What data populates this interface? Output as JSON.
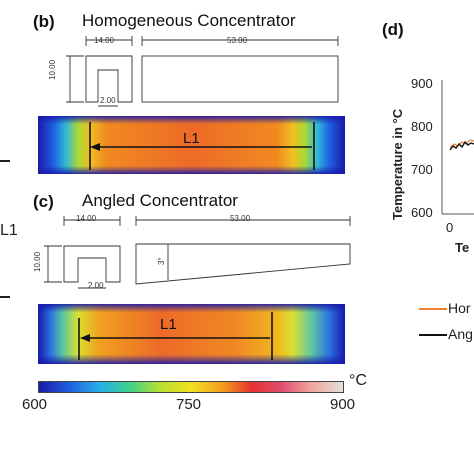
{
  "panel_b": {
    "label": "(b)",
    "title": "Homogeneous Concentrator",
    "dims": {
      "w1": "14.00",
      "w2": "53.00",
      "h": "10.00",
      "g": "2.00"
    },
    "sim_label": "L1"
  },
  "panel_c": {
    "label": "(c)",
    "title": "Angled Concentrator",
    "dims": {
      "w1": "14.00",
      "w2": "53.00",
      "h": "10.00",
      "g": "2.00",
      "angle": "3°"
    },
    "sim_label": "L1"
  },
  "colorbar": {
    "unit": "°C",
    "ticks": [
      "600",
      "750",
      "900"
    ],
    "colors": [
      "#1a1aa8",
      "#1f5fe0",
      "#28b0e8",
      "#3fd08a",
      "#b8e030",
      "#f0e020",
      "#f4a020",
      "#e83030",
      "#e05070",
      "#f0a8a0",
      "#e8e0da"
    ]
  },
  "left_edge": {
    "label": "L1"
  },
  "panel_d": {
    "label": "(d)",
    "ylabel": "Temperature in °C",
    "yticks": [
      "900",
      "800",
      "700",
      "600"
    ],
    "xtick": "0",
    "xlabel_partial": "Te",
    "legend": [
      {
        "label": "Hor",
        "color": "#f08030"
      },
      {
        "label": "Ang",
        "color": "#111111"
      }
    ]
  }
}
